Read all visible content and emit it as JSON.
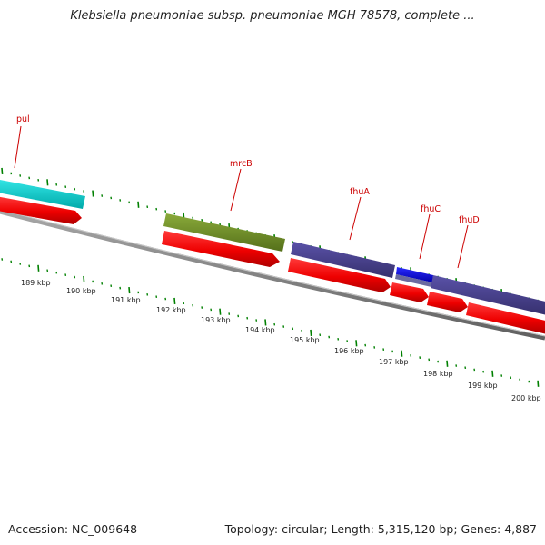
{
  "title": "Klebsiella pneumoniae subsp. pneumoniae MGH 78578, complete ...",
  "footer": {
    "accession": "Accession: NC_009648",
    "stats": "Topology: circular; Length: 5,315,120 bp; Genes: 4,887"
  },
  "scale_labels": [
    "189 kbp",
    "190 kbp",
    "191 kbp",
    "192 kbp",
    "193 kbp",
    "194 kbp",
    "195 kbp",
    "196 kbp",
    "197 kbp",
    "198 kbp",
    "199 kbp",
    "200 kbp"
  ],
  "gene_labels": [
    {
      "id": "pul",
      "text": "pul"
    },
    {
      "id": "mrcB",
      "text": "mrcB"
    },
    {
      "id": "fhuA",
      "text": "fhuA"
    },
    {
      "id": "fhuC",
      "text": "fhuC"
    },
    {
      "id": "fhuD",
      "text": "fhuD"
    }
  ],
  "features": [
    {
      "id": "pul-cds",
      "track": "cds",
      "color": "#00cccc"
    },
    {
      "id": "mrcB-cds",
      "track": "cds",
      "color": "#6b8e23"
    },
    {
      "id": "fhuA-cds",
      "track": "cds",
      "color": "#483d8b"
    },
    {
      "id": "fhuC-cds",
      "track": "cds",
      "color": "#0000dd"
    },
    {
      "id": "fhuD-cds",
      "track": "cds",
      "color": "#483d8b"
    },
    {
      "id": "gene-1",
      "track": "gene",
      "color": "#ee0000"
    },
    {
      "id": "gene-2",
      "track": "gene",
      "color": "#ee0000"
    },
    {
      "id": "gene-3",
      "track": "gene",
      "color": "#ee0000"
    },
    {
      "id": "gene-4",
      "track": "gene",
      "color": "#ee0000"
    },
    {
      "id": "gene-5",
      "track": "gene",
      "color": "#ee0000"
    },
    {
      "id": "gene-6",
      "track": "gene",
      "color": "#ee0000"
    }
  ],
  "colors": {
    "backbone": "#808080",
    "ticks": "#008000",
    "gene_labels": "#cc0000"
  }
}
